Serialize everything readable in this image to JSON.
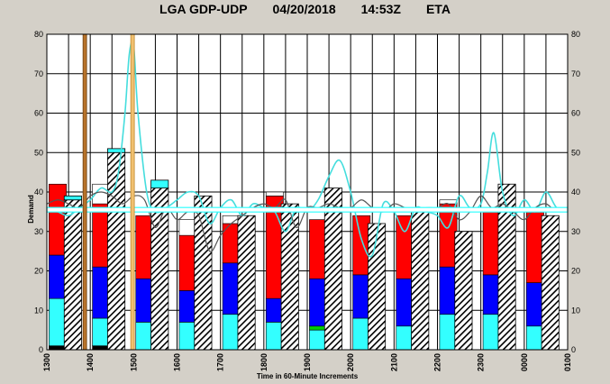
{
  "header": {
    "airport": "LGA GDP-UDP",
    "date": "04/20/2018",
    "time": "14:53Z",
    "mode": "ETA"
  },
  "colors": {
    "background": "#d4d0c8",
    "plot": "#ffffff",
    "grid": "#000000",
    "cyan": "#33ffff",
    "blue": "#0000ff",
    "red": "#ff0000",
    "white": "#ffffff",
    "black": "#000000",
    "green": "#00cc00",
    "threshold": "#ffffff",
    "threshold_edge": "#33ffff",
    "line_cyan": "#44dddd",
    "line_dark": "#555555",
    "marker_brown": "#b8732a",
    "marker_gold": "#f0c070"
  },
  "chart_data": {
    "type": "bar",
    "title": "",
    "xlabel": "Time in 60-Minute Increments",
    "ylabel": "Demand",
    "ylim": [
      0,
      80
    ],
    "yticks": [
      0,
      10,
      20,
      30,
      40,
      50,
      60,
      70,
      80
    ],
    "categories": [
      "1300",
      "1400",
      "1500",
      "1600",
      "1700",
      "1800",
      "1900",
      "2000",
      "2100",
      "2200",
      "2300",
      "0000",
      "0100"
    ],
    "threshold": 35.5,
    "markers": [
      {
        "color": "brown",
        "x": 1.75
      },
      {
        "color": "gold",
        "x": 3.95
      }
    ],
    "stacked_bars": [
      {
        "pos": 0.5,
        "segments": [
          {
            "c": "black",
            "v": 1
          },
          {
            "c": "cyan",
            "v": 12
          },
          {
            "c": "blue",
            "v": 11
          },
          {
            "c": "red",
            "v": 18
          }
        ]
      },
      {
        "pos": 2.5,
        "segments": [
          {
            "c": "black",
            "v": 1
          },
          {
            "c": "cyan",
            "v": 7
          },
          {
            "c": "blue",
            "v": 13
          },
          {
            "c": "red",
            "v": 16
          },
          {
            "c": "white",
            "v": 5
          }
        ]
      },
      {
        "pos": 4.5,
        "segments": [
          {
            "c": "cyan",
            "v": 7
          },
          {
            "c": "blue",
            "v": 11
          },
          {
            "c": "red",
            "v": 16
          }
        ]
      },
      {
        "pos": 6.5,
        "segments": [
          {
            "c": "cyan",
            "v": 7
          },
          {
            "c": "blue",
            "v": 8
          },
          {
            "c": "red",
            "v": 14
          },
          {
            "c": "white",
            "v": 4
          }
        ]
      },
      {
        "pos": 8.5,
        "segments": [
          {
            "c": "cyan",
            "v": 9
          },
          {
            "c": "blue",
            "v": 13
          },
          {
            "c": "red",
            "v": 10
          },
          {
            "c": "white",
            "v": 2
          }
        ]
      },
      {
        "pos": 10.5,
        "segments": [
          {
            "c": "cyan",
            "v": 7
          },
          {
            "c": "blue",
            "v": 6
          },
          {
            "c": "red",
            "v": 26
          },
          {
            "c": "white",
            "v": 1
          }
        ]
      },
      {
        "pos": 12.5,
        "segments": [
          {
            "c": "cyan",
            "v": 5
          },
          {
            "c": "green",
            "v": 1
          },
          {
            "c": "blue",
            "v": 12
          },
          {
            "c": "red",
            "v": 15
          }
        ]
      },
      {
        "pos": 14.5,
        "segments": [
          {
            "c": "cyan",
            "v": 8
          },
          {
            "c": "blue",
            "v": 11
          },
          {
            "c": "red",
            "v": 15
          }
        ]
      },
      {
        "pos": 16.5,
        "segments": [
          {
            "c": "cyan",
            "v": 6
          },
          {
            "c": "blue",
            "v": 12
          },
          {
            "c": "red",
            "v": 16
          }
        ]
      },
      {
        "pos": 18.5,
        "segments": [
          {
            "c": "cyan",
            "v": 9
          },
          {
            "c": "blue",
            "v": 12
          },
          {
            "c": "red",
            "v": 16
          },
          {
            "c": "white",
            "v": 1
          }
        ]
      },
      {
        "pos": 20.5,
        "segments": [
          {
            "c": "cyan",
            "v": 9
          },
          {
            "c": "blue",
            "v": 10
          },
          {
            "c": "red",
            "v": 16
          }
        ]
      },
      {
        "pos": 22.5,
        "segments": [
          {
            "c": "cyan",
            "v": 6
          },
          {
            "c": "blue",
            "v": 11
          },
          {
            "c": "red",
            "v": 18
          }
        ]
      }
    ],
    "hatched_bars": [
      {
        "pos": 1.2,
        "v": 38,
        "cap": 1
      },
      {
        "pos": 3.2,
        "v": 50,
        "cap": 1
      },
      {
        "pos": 5.2,
        "v": 41,
        "cap": 2
      },
      {
        "pos": 7.2,
        "v": 39,
        "cap": 0
      },
      {
        "pos": 9.2,
        "v": 34,
        "cap": 0
      },
      {
        "pos": 11.2,
        "v": 37,
        "cap": 0
      },
      {
        "pos": 13.2,
        "v": 41,
        "cap": 0
      },
      {
        "pos": 15.2,
        "v": 32,
        "cap": 0
      },
      {
        "pos": 17.2,
        "v": 36,
        "cap": 0
      },
      {
        "pos": 19.2,
        "v": 30,
        "cap": 0
      },
      {
        "pos": 21.2,
        "v": 42,
        "cap": 0
      },
      {
        "pos": 23.2,
        "v": 34,
        "cap": 0
      }
    ],
    "series": [
      {
        "color": "cyan",
        "x": [
          0,
          0.5,
          1,
          1.5,
          2,
          2.5,
          3,
          3.3,
          3.6,
          3.8,
          4.0,
          4.2,
          4.6,
          5.0,
          5.5,
          6,
          6.5,
          7,
          7.5,
          8,
          8.5,
          9,
          9.5,
          10,
          10.5,
          11,
          11.5,
          12,
          12.5,
          13,
          13.5,
          14,
          14.5,
          15,
          15.5,
          16,
          16.5,
          17,
          17.5,
          18,
          18.5,
          19,
          19.5,
          20,
          20.3,
          20.6,
          21,
          21.5,
          22,
          22.5,
          23,
          23.5,
          24
        ],
        "y": [
          36,
          35,
          34,
          36,
          38,
          41,
          40,
          45,
          60,
          75,
          77,
          60,
          40,
          35,
          36,
          38,
          40,
          39,
          32,
          36,
          38,
          34,
          37,
          36,
          35,
          30,
          36,
          35,
          38,
          44,
          48,
          40,
          28,
          24,
          37,
          35,
          30,
          36,
          35,
          34,
          31,
          39,
          36,
          37,
          45,
          55,
          40,
          34,
          38,
          35,
          40,
          36,
          36
        ]
      },
      {
        "color": "dark",
        "x": [
          0,
          0.5,
          1,
          1.5,
          2,
          2.5,
          3,
          3.5,
          4,
          4.5,
          5,
          5.5,
          6,
          6.5,
          7,
          7.5,
          8,
          8.5,
          9,
          9.5,
          10,
          10.5,
          11,
          11.5,
          12,
          12.5,
          13,
          13.5,
          14,
          14.5,
          15,
          15.5,
          16,
          16.5,
          17,
          17.5,
          18,
          18.5,
          19,
          19.5,
          20,
          20.5,
          21,
          21.5,
          22,
          22.5,
          23,
          23.5,
          24
        ],
        "y": [
          37,
          38,
          37,
          36,
          39,
          40,
          39,
          37,
          39,
          38,
          31,
          36,
          33,
          35,
          34,
          25,
          29,
          32,
          34,
          36,
          37,
          36,
          38,
          31,
          36,
          36,
          37,
          36,
          36,
          38,
          36,
          35,
          37,
          36,
          35,
          36,
          36,
          37,
          33,
          35,
          39,
          36,
          37,
          35,
          33,
          36,
          37,
          35,
          36
        ]
      }
    ]
  }
}
